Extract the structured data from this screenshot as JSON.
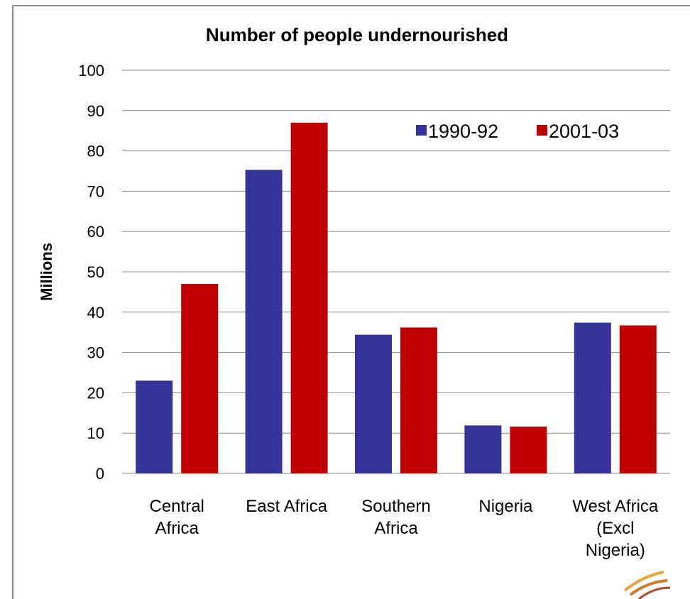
{
  "chart_data": {
    "type": "bar",
    "title": "Number of people undernourished",
    "xlabel": "",
    "ylabel": "Millions",
    "ylim": [
      0,
      100
    ],
    "yticks": [
      0,
      10,
      20,
      30,
      40,
      50,
      60,
      70,
      80,
      90,
      100
    ],
    "grid": true,
    "legend_position": "top-right",
    "categories": [
      [
        "Central",
        "Africa"
      ],
      [
        "East Africa"
      ],
      [
        "Southern",
        "Africa"
      ],
      [
        "Nigeria"
      ],
      [
        "West Africa",
        "(Excl",
        "Nigeria)"
      ]
    ],
    "series": [
      {
        "name": "1990-92",
        "color": "#333399",
        "values": [
          23,
          75.3,
          34.4,
          11.9,
          37.4
        ]
      },
      {
        "name": "2001-03",
        "color": "#c00000",
        "values": [
          47,
          87,
          36.2,
          11.6,
          36.7
        ]
      }
    ]
  },
  "decor": {
    "logo_icon": "swoosh-logo-icon",
    "logo_colors": [
      "#e8a33c",
      "#b5472b"
    ]
  }
}
